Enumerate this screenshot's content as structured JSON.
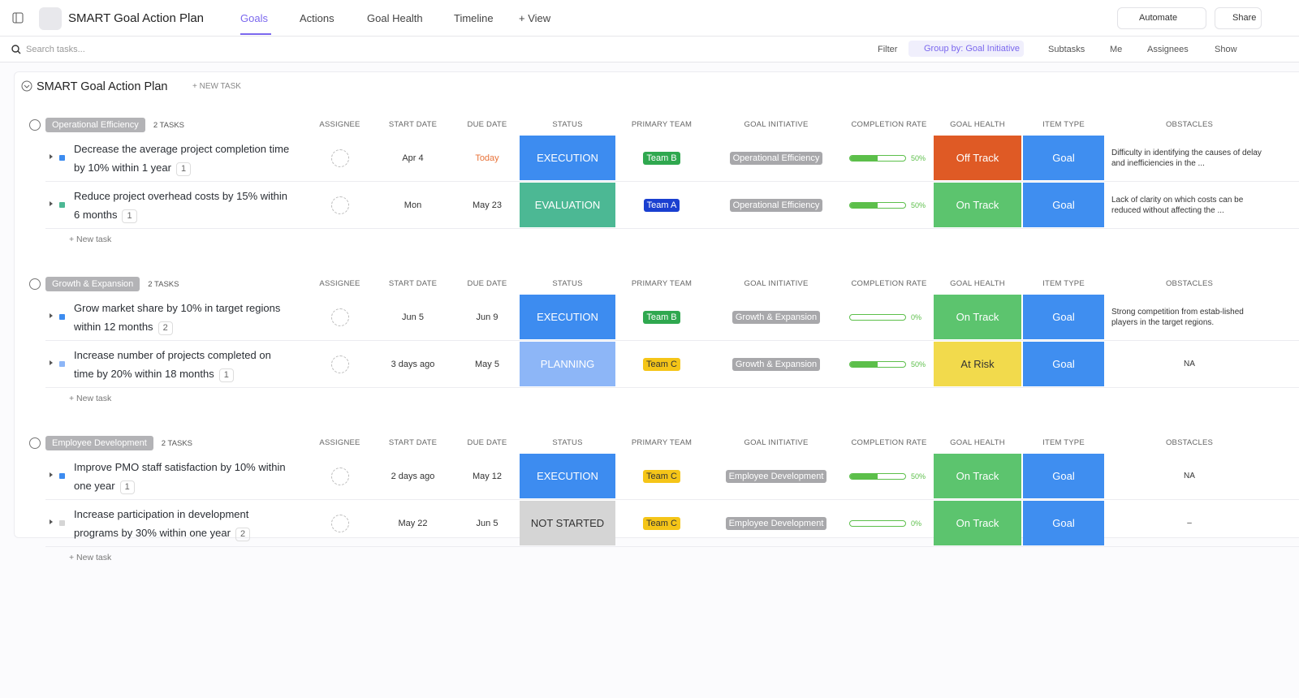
{
  "topbar": {
    "title": "SMART Goal Action Plan",
    "tabs": [
      "Goals",
      "Actions",
      "Goal Health",
      "Timeline"
    ],
    "add_view": "+ View",
    "automate": "Automate",
    "share": "Share"
  },
  "toolbar": {
    "search_placeholder": "Search tasks...",
    "filter": "Filter",
    "group_by": "Group by: Goal Initiative",
    "subtasks": "Subtasks",
    "me": "Me",
    "assignees": "Assignees",
    "show": "Show"
  },
  "list": {
    "title": "SMART Goal Action Plan",
    "new_task": "+ NEW TASK"
  },
  "columns": [
    "ASSIGNEE",
    "START DATE",
    "DUE DATE",
    "STATUS",
    "PRIMARY TEAM",
    "GOAL INITIATIVE",
    "COMPLETION RATE",
    "GOAL HEALTH",
    "ITEM TYPE",
    "OBSTACLES"
  ],
  "groups": [
    {
      "name": "Operational Efficiency",
      "count": "2 TASKS",
      "add_task": "+ New task",
      "tasks": [
        {
          "name": "Decrease the average project completion time by 10% within 1 year",
          "subtasks": "1",
          "start": "Apr 4",
          "due": "Today",
          "due_color": "#e8733a",
          "status": "EXECUTION",
          "status_color": "#3d8cf0",
          "status_text": "#ffffff",
          "team": "Team B",
          "team_color": "#2fa84f",
          "team_text": "#ffffff",
          "initiative": "Operational Efficiency",
          "completion": {
            "value": 50,
            "label": "50%"
          },
          "health": "Off Track",
          "health_color": "#df5a25",
          "health_text": "#ffffff",
          "item_type": "Goal",
          "obstacles": "Difficulty in identifying the causes of delay and inefficiencies in the ..."
        },
        {
          "name": "Reduce project overhead costs by 15% within 6 months",
          "subtasks": "1",
          "start": "Mon",
          "due": "May 23",
          "due_color": "#333333",
          "status": "EVALUATION",
          "status_color": "#4cb894",
          "status_text": "#ffffff",
          "team": "Team A",
          "team_color": "#1a3fd0",
          "team_text": "#ffffff",
          "initiative": "Operational Efficiency",
          "completion": {
            "value": 50,
            "label": "50%"
          },
          "health": "On Track",
          "health_color": "#5cc46e",
          "health_text": "#ffffff",
          "item_type": "Goal",
          "obstacles": "Lack of clarity on which costs can be reduced without affecting the ..."
        }
      ]
    },
    {
      "name": "Growth & Expansion",
      "count": "2 TASKS",
      "add_task": "+ New task",
      "tasks": [
        {
          "name": "Grow market share by 10% in target regions within 12 months",
          "subtasks": "2",
          "start": "Jun 5",
          "due": "Jun 9",
          "due_color": "#333333",
          "status": "EXECUTION",
          "status_color": "#3d8cf0",
          "status_text": "#ffffff",
          "team": "Team B",
          "team_color": "#2fa84f",
          "team_text": "#ffffff",
          "initiative": "Growth & Expansion",
          "completion": {
            "value": 0,
            "label": "0%"
          },
          "health": "On Track",
          "health_color": "#5cc46e",
          "health_text": "#ffffff",
          "item_type": "Goal",
          "obstacles": "Strong competition from estab-lished players in the target regions."
        },
        {
          "name": "Increase number of projects completed on time by 20% within 18 months",
          "subtasks": "1",
          "start": "3 days ago",
          "due": "May 5",
          "due_color": "#333333",
          "status": "PLANNING",
          "status_color": "#8db6f7",
          "status_text": "#ffffff",
          "team": "Team C",
          "team_color": "#f5c518",
          "team_text": "#333333",
          "initiative": "Growth & Expansion",
          "completion": {
            "value": 50,
            "label": "50%"
          },
          "health": "At Risk",
          "health_color": "#f2da4c",
          "health_text": "#333333",
          "item_type": "Goal",
          "obstacles": "NA"
        }
      ]
    },
    {
      "name": "Employee Development",
      "count": "2 TASKS",
      "add_task": "+ New task",
      "tasks": [
        {
          "name": "Improve PMO staff satisfaction by 10% within one year",
          "subtasks": "1",
          "start": "2 days ago",
          "due": "May 12",
          "due_color": "#333333",
          "status": "EXECUTION",
          "status_color": "#3d8cf0",
          "status_text": "#ffffff",
          "team": "Team C",
          "team_color": "#f5c518",
          "team_text": "#333333",
          "initiative": "Employee Development",
          "completion": {
            "value": 50,
            "label": "50%"
          },
          "health": "On Track",
          "health_color": "#5cc46e",
          "health_text": "#ffffff",
          "item_type": "Goal",
          "obstacles": "NA"
        },
        {
          "name": "Increase participation in development programs by 30% within one year",
          "subtasks": "2",
          "start": "May 22",
          "due": "Jun 5",
          "due_color": "#333333",
          "status": "NOT STARTED",
          "status_color": "#d5d5d5",
          "status_text": "#333333",
          "team": "Team C",
          "team_color": "#f5c518",
          "team_text": "#333333",
          "initiative": "Employee Development",
          "completion": {
            "value": 0,
            "label": "0%"
          },
          "health": "On Track",
          "health_color": "#5cc46e",
          "health_text": "#ffffff",
          "item_type": "Goal",
          "obstacles": "–"
        }
      ]
    }
  ]
}
